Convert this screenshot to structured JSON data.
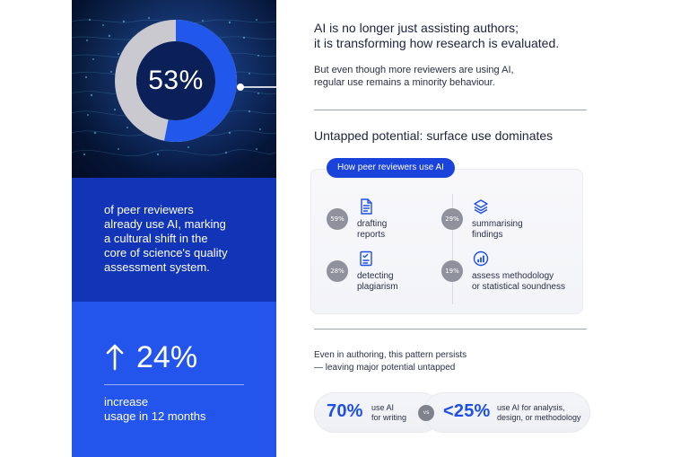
{
  "hero": {
    "percentage": "53%",
    "percentage_fraction": 0.53,
    "colors": {
      "filled": "#2157ea",
      "remaining": "#c9c9cf",
      "inner": "#0b1f59"
    }
  },
  "left_panel": {
    "stat_description": "of peer reviewers\nalready use AI, marking\na cultural shift in the\ncore of science's quality\nassessment system.",
    "increase_value": "24%",
    "increase_caption": "increase\nusage in 12 months",
    "colors": {
      "dark_block": "#1135b6",
      "bright_block": "#2354eb"
    }
  },
  "main": {
    "headline": "AI is no longer just assisting authors;\nit is transforming how research is evaluated.",
    "subhead": "But even though more reviewers are using AI,\nregular use remains a minority behaviour.",
    "section_title": "Untapped potential: surface use dominates",
    "usage_panel": {
      "pill_label": "How peer reviewers use AI",
      "items": [
        {
          "percent": "59%",
          "icon": "document-icon",
          "label": "drafting\nreports"
        },
        {
          "percent": "29%",
          "icon": "layers-icon",
          "label": "summarising\nfindings"
        },
        {
          "percent": "28%",
          "icon": "checklist-icon",
          "label": "detecting\nplagiarism"
        },
        {
          "percent": "19%",
          "icon": "chart-icon",
          "label": "assess methodology\nor statistical soundness"
        }
      ]
    },
    "authoring_copy": "Even in authoring, this pattern persists\n— leaving major potential untapped",
    "comparison": {
      "left_value": "70%",
      "left_label": "use AI\nfor writing",
      "vs": "vs",
      "right_value": "<25%",
      "right_label": "use AI for analysis,\ndesign, or methodology"
    }
  }
}
